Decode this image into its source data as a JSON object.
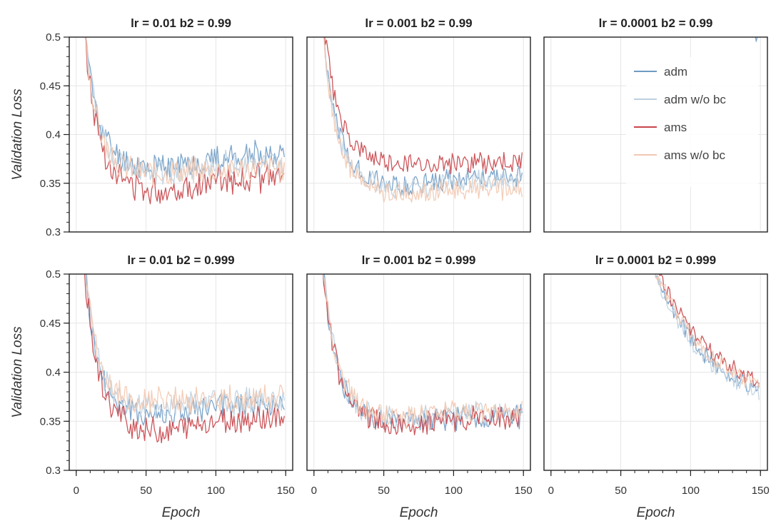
{
  "chart_data": [
    {
      "type": "line",
      "title": "lr = 0.01   b2 = 0.99",
      "ylabel": "Validation Loss",
      "xlabel": "",
      "xlim": [
        -5,
        155
      ],
      "ylim": [
        0.3,
        0.5
      ],
      "yticks": [
        0.3,
        0.35,
        0.4,
        0.45,
        0.5
      ],
      "xticks": [
        0,
        50,
        100,
        150
      ],
      "show_xticks": false,
      "show_yticks": true,
      "legend": false,
      "series": [
        {
          "name": "adm",
          "base": 0.37,
          "start": 0.62,
          "tau": 9,
          "dip": 0.008,
          "drift": 0.01,
          "noise": 0.01,
          "seed": 11
        },
        {
          "name": "adm w/o bc",
          "base": 0.365,
          "start": 0.62,
          "tau": 9,
          "dip": 0.006,
          "drift": 0.006,
          "noise": 0.01,
          "seed": 12
        },
        {
          "name": "ams",
          "base": 0.352,
          "start": 0.62,
          "tau": 9,
          "dip": 0.012,
          "drift": 0.004,
          "noise": 0.01,
          "seed": 13
        },
        {
          "name": "ams w/o bc",
          "base": 0.36,
          "start": 0.62,
          "tau": 9,
          "dip": 0.002,
          "drift": 0.006,
          "noise": 0.01,
          "seed": 14
        }
      ]
    },
    {
      "type": "line",
      "title": "lr = 0.001   b2 = 0.99",
      "ylabel": "",
      "xlabel": "",
      "xlim": [
        -5,
        155
      ],
      "ylim": [
        0.3,
        0.5
      ],
      "yticks": [
        0.3,
        0.35,
        0.4,
        0.45,
        0.5
      ],
      "xticks": [
        0,
        50,
        100,
        150
      ],
      "show_xticks": false,
      "show_yticks": false,
      "legend": false,
      "series": [
        {
          "name": "adm",
          "base": 0.355,
          "start": 0.62,
          "tau": 10,
          "dip": 0.008,
          "drift": 0.002,
          "noise": 0.008,
          "seed": 21
        },
        {
          "name": "adm w/o bc",
          "base": 0.352,
          "start": 0.62,
          "tau": 10,
          "dip": 0.008,
          "drift": 0.0,
          "noise": 0.008,
          "seed": 22
        },
        {
          "name": "ams",
          "base": 0.368,
          "start": 0.62,
          "tau": 11,
          "dip": 0.0,
          "drift": 0.004,
          "noise": 0.008,
          "seed": 23
        },
        {
          "name": "ams w/o bc",
          "base": 0.345,
          "start": 0.62,
          "tau": 10,
          "dip": 0.006,
          "drift": -0.002,
          "noise": 0.008,
          "seed": 24
        }
      ]
    },
    {
      "type": "line",
      "title": "lr = 0.0001   b2 = 0.99",
      "ylabel": "",
      "xlabel": "",
      "xlim": [
        -5,
        155
      ],
      "ylim": [
        0.3,
        0.5
      ],
      "yticks": [
        0.3,
        0.35,
        0.4,
        0.45,
        0.5
      ],
      "xticks": [
        0,
        50,
        100,
        150
      ],
      "show_xticks": false,
      "show_yticks": false,
      "legend": true,
      "series": [
        {
          "name": "adm",
          "base": 0.43,
          "start": 1.2,
          "tau": 60,
          "dip": 0.0,
          "drift": 0.0,
          "noise": 0.006,
          "seed": 31
        },
        {
          "name": "adm w/o bc",
          "base": 0.44,
          "start": 1.2,
          "tau": 60,
          "dip": 0.0,
          "drift": 0.0,
          "noise": 0.006,
          "seed": 32
        },
        {
          "name": "ams",
          "base": 0.45,
          "start": 1.2,
          "tau": 62,
          "dip": 0.0,
          "drift": 0.0,
          "noise": 0.006,
          "seed": 33
        },
        {
          "name": "ams w/o bc",
          "base": 0.45,
          "start": 1.2,
          "tau": 62,
          "dip": 0.0,
          "drift": 0.0,
          "noise": 0.006,
          "seed": 34
        }
      ]
    },
    {
      "type": "line",
      "title": "lr = 0.01   b2 = 0.999",
      "ylabel": "Validation Loss",
      "xlabel": "Epoch",
      "xlim": [
        -5,
        155
      ],
      "ylim": [
        0.3,
        0.5
      ],
      "yticks": [
        0.3,
        0.35,
        0.4,
        0.45,
        0.5
      ],
      "xticks": [
        0,
        50,
        100,
        150
      ],
      "show_xticks": true,
      "show_yticks": true,
      "legend": false,
      "series": [
        {
          "name": "adm",
          "base": 0.358,
          "start": 0.62,
          "tau": 9,
          "dip": 0.006,
          "drift": 0.01,
          "noise": 0.01,
          "seed": 41
        },
        {
          "name": "adm w/o bc",
          "base": 0.365,
          "start": 0.62,
          "tau": 9,
          "dip": 0.004,
          "drift": 0.008,
          "noise": 0.01,
          "seed": 42
        },
        {
          "name": "ams",
          "base": 0.35,
          "start": 0.62,
          "tau": 9,
          "dip": 0.012,
          "drift": 0.004,
          "noise": 0.01,
          "seed": 43
        },
        {
          "name": "ams w/o bc",
          "base": 0.368,
          "start": 0.62,
          "tau": 9,
          "dip": 0.0,
          "drift": 0.006,
          "noise": 0.01,
          "seed": 44
        }
      ]
    },
    {
      "type": "line",
      "title": "lr = 0.001   b2 = 0.999",
      "ylabel": "",
      "xlabel": "Epoch",
      "xlim": [
        -5,
        155
      ],
      "ylim": [
        0.3,
        0.5
      ],
      "yticks": [
        0.3,
        0.35,
        0.4,
        0.45,
        0.5
      ],
      "xticks": [
        0,
        50,
        100,
        150
      ],
      "show_xticks": true,
      "show_yticks": false,
      "legend": false,
      "series": [
        {
          "name": "adm",
          "base": 0.352,
          "start": 0.62,
          "tau": 10,
          "dip": 0.006,
          "drift": 0.004,
          "noise": 0.009,
          "seed": 51
        },
        {
          "name": "adm w/o bc",
          "base": 0.355,
          "start": 0.62,
          "tau": 10,
          "dip": 0.004,
          "drift": 0.004,
          "noise": 0.009,
          "seed": 52
        },
        {
          "name": "ams",
          "base": 0.351,
          "start": 0.62,
          "tau": 10,
          "dip": 0.006,
          "drift": 0.002,
          "noise": 0.009,
          "seed": 53
        },
        {
          "name": "ams w/o bc",
          "base": 0.356,
          "start": 0.62,
          "tau": 10,
          "dip": 0.004,
          "drift": 0.004,
          "noise": 0.009,
          "seed": 54
        }
      ]
    },
    {
      "type": "line",
      "title": "lr = 0.0001   b2 = 0.999",
      "ylabel": "",
      "xlabel": "Epoch",
      "xlim": [
        -5,
        155
      ],
      "ylim": [
        0.3,
        0.5
      ],
      "yticks": [
        0.3,
        0.35,
        0.4,
        0.45,
        0.5
      ],
      "xticks": [
        0,
        50,
        100,
        150
      ],
      "show_xticks": true,
      "show_yticks": false,
      "legend": false,
      "series": [
        {
          "name": "adm",
          "base": 0.36,
          "start": 1.25,
          "tau": 40,
          "dip": 0.0,
          "drift": 0.0,
          "noise": 0.006,
          "seed": 61
        },
        {
          "name": "adm w/o bc",
          "base": 0.357,
          "start": 1.25,
          "tau": 40,
          "dip": 0.0,
          "drift": 0.0,
          "noise": 0.006,
          "seed": 62
        },
        {
          "name": "ams",
          "base": 0.37,
          "start": 1.25,
          "tau": 40,
          "dip": 0.0,
          "drift": 0.0,
          "noise": 0.006,
          "seed": 63
        },
        {
          "name": "ams w/o bc",
          "base": 0.365,
          "start": 1.25,
          "tau": 40,
          "dip": 0.0,
          "drift": 0.0,
          "noise": 0.006,
          "seed": 64
        }
      ]
    }
  ],
  "legend": {
    "entries": [
      {
        "name": "adm",
        "color": "#6f9bc4"
      },
      {
        "name": "adm w/o bc",
        "color": "#bdd0e0"
      },
      {
        "name": "ams",
        "color": "#c8454a"
      },
      {
        "name": "ams w/o bc",
        "color": "#f2c8b0"
      }
    ]
  },
  "colors": {
    "adm": "#6f9bc4",
    "adm w/o bc": "#bdd0e0",
    "ams": "#c8454a",
    "ams w/o bc": "#f2c8b0"
  }
}
